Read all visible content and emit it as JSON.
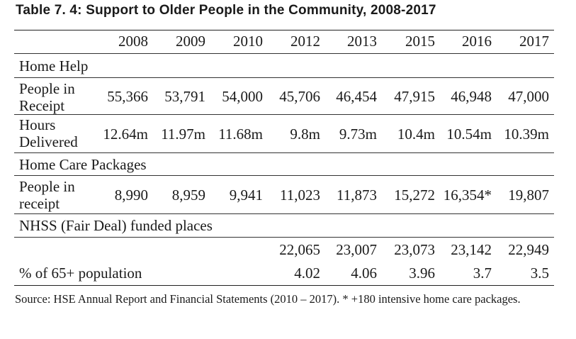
{
  "title": "Table 7. 4: Support to Older People in the Community, 2008-2017",
  "years": [
    "2008",
    "2009",
    "2010",
    "2012",
    "2013",
    "2015",
    "2016",
    "2017"
  ],
  "sections": {
    "home_help": {
      "label": "Home Help",
      "people": {
        "label_line1": "People in",
        "label_line2": "Receipt",
        "values": [
          "55,366",
          "53,791",
          "54,000",
          "45,706",
          "46,454",
          "47,915",
          "46,948",
          "47,000"
        ]
      },
      "hours": {
        "label_line1": "Hours",
        "label_line2": "Delivered",
        "values": [
          "12.64m",
          "11.97m",
          "11.68m",
          "9.8m",
          "9.73m",
          "10.4m",
          "10.54m",
          "10.39m"
        ]
      }
    },
    "home_care": {
      "label": "Home Care Packages",
      "people": {
        "label_line1": "People in",
        "label_line2": "receipt",
        "values": [
          "8,990",
          "8,959",
          "9,941",
          "11,023",
          "11,873",
          "15,272",
          "16,354*",
          "19,807"
        ]
      }
    },
    "nhss": {
      "label": "NHSS (Fair Deal) funded places",
      "places": {
        "values": [
          "",
          "",
          "",
          "22,065",
          "23,007",
          "23,073",
          "23,142",
          "22,949"
        ]
      },
      "pct": {
        "label": "% of 65+ population",
        "values": [
          "",
          "",
          "",
          "4.02",
          "4.06",
          "3.96",
          "3.7",
          "3.5"
        ]
      }
    }
  },
  "source": "Source: HSE Annual Report and Financial Statements (2010 – 2017). * +180 intensive home care packages."
}
